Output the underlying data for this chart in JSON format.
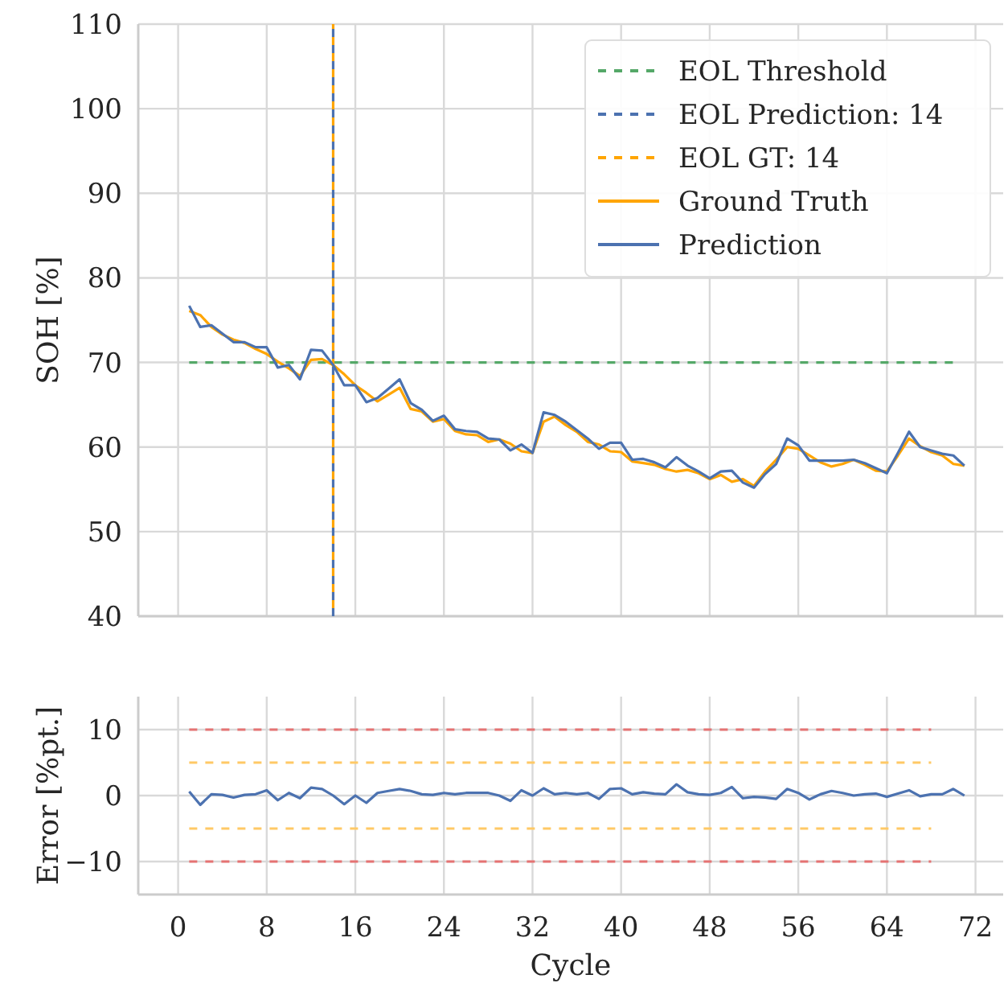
{
  "chart_data": [
    {
      "type": "line",
      "ylabel": "SOH [%]",
      "xlim": [
        -3.6,
        74.5
      ],
      "ylim": [
        40,
        110
      ],
      "xticks": [
        {
          "value": 0,
          "label": null
        },
        {
          "value": 8,
          "label": null
        },
        {
          "value": 16,
          "label": null
        },
        {
          "value": 24,
          "label": null
        },
        {
          "value": 32,
          "label": null
        },
        {
          "value": 40,
          "label": null
        },
        {
          "value": 48,
          "label": null
        },
        {
          "value": 56,
          "label": null
        },
        {
          "value": 64,
          "label": null
        },
        {
          "value": 72,
          "label": null
        }
      ],
      "yticks": [
        40,
        50,
        60,
        70,
        80,
        90,
        100,
        110
      ],
      "grid": true,
      "legend": "top right",
      "tick_labels": "y",
      "series": [
        {
          "name": "EOL Threshold",
          "color": "#55a868",
          "line_style": "dashed",
          "x": [
            1,
            70
          ],
          "values": [
            70,
            70
          ]
        },
        {
          "name": "EOL Prediction: 14",
          "color": "#4c72b0",
          "line_style": "dashed",
          "x": [
            14,
            14
          ],
          "values": [
            40,
            110
          ]
        },
        {
          "name": "EOL GT: 14",
          "color": "#ffa500",
          "line_style": "dashed",
          "x": [
            14,
            14
          ],
          "values": [
            40,
            110
          ]
        },
        {
          "name": "Ground Truth",
          "color": "#ffa500",
          "line_style": "solid",
          "x": [
            1,
            2,
            3,
            4,
            5,
            6,
            7,
            8,
            9,
            10,
            11,
            12,
            13,
            14,
            15,
            16,
            17,
            18,
            19,
            20,
            21,
            22,
            23,
            24,
            25,
            26,
            27,
            28,
            29,
            30,
            31,
            32,
            33,
            34,
            35,
            36,
            37,
            38,
            39,
            40,
            41,
            42,
            43,
            44,
            45,
            46,
            47,
            48,
            49,
            50,
            51,
            52,
            53,
            54,
            55,
            56,
            57,
            58,
            59,
            60,
            61,
            62,
            63,
            64,
            65,
            66,
            67,
            68,
            69,
            70,
            71
          ],
          "values": [
            76.1,
            75.6,
            74.2,
            73.3,
            72.7,
            72.3,
            71.6,
            71.0,
            70.1,
            69.3,
            68.4,
            70.3,
            70.4,
            69.7,
            68.6,
            67.3,
            66.4,
            65.4,
            66.2,
            67.0,
            64.5,
            64.2,
            63.0,
            63.3,
            61.9,
            61.5,
            61.4,
            60.6,
            60.9,
            60.4,
            59.5,
            59.3,
            63.0,
            63.6,
            62.6,
            61.8,
            60.6,
            60.3,
            59.5,
            59.4,
            58.3,
            58.1,
            57.9,
            57.4,
            57.1,
            57.3,
            56.9,
            56.2,
            56.7,
            55.9,
            56.2,
            55.4,
            57.1,
            58.5,
            60.0,
            59.8,
            59.0,
            58.2,
            57.7,
            58.0,
            58.5,
            57.9,
            57.2,
            57.1,
            59.0,
            61.0,
            60.1,
            59.4,
            59.0,
            58.0,
            57.8
          ]
        },
        {
          "name": "Prediction",
          "color": "#4c72b0",
          "line_style": "solid",
          "x": [
            1,
            2,
            3,
            4,
            5,
            6,
            7,
            8,
            9,
            10,
            11,
            12,
            13,
            14,
            15,
            16,
            17,
            18,
            19,
            20,
            21,
            22,
            23,
            24,
            25,
            26,
            27,
            28,
            29,
            30,
            31,
            32,
            33,
            34,
            35,
            36,
            37,
            38,
            39,
            40,
            41,
            42,
            43,
            44,
            45,
            46,
            47,
            48,
            49,
            50,
            51,
            52,
            53,
            54,
            55,
            56,
            57,
            58,
            59,
            60,
            61,
            62,
            63,
            64,
            65,
            66,
            67,
            68,
            69,
            70,
            71
          ],
          "values": [
            76.7,
            74.2,
            74.4,
            73.4,
            72.4,
            72.4,
            71.8,
            71.8,
            69.4,
            69.7,
            68.0,
            71.5,
            71.4,
            69.7,
            67.3,
            67.3,
            65.3,
            65.8,
            66.9,
            68.0,
            65.2,
            64.4,
            63.1,
            63.7,
            62.1,
            61.9,
            61.8,
            61.0,
            60.9,
            59.6,
            60.3,
            59.3,
            64.1,
            63.8,
            63.0,
            62.0,
            61.0,
            59.8,
            60.5,
            60.5,
            58.5,
            58.6,
            58.2,
            57.6,
            58.8,
            57.8,
            57.1,
            56.3,
            57.1,
            57.2,
            55.8,
            55.2,
            56.8,
            58.0,
            61.0,
            60.2,
            58.4,
            58.4,
            58.4,
            58.4,
            58.5,
            58.1,
            57.5,
            56.9,
            59.3,
            61.8,
            60.0,
            59.6,
            59.2,
            59.0,
            57.8
          ]
        }
      ]
    },
    {
      "type": "line",
      "xlabel": "Cycle",
      "ylabel": "Error [%pt.]",
      "xlim": [
        -3.6,
        74.5
      ],
      "ylim": [
        -15,
        15
      ],
      "xticks": [
        0,
        8,
        16,
        24,
        32,
        40,
        48,
        56,
        64,
        72
      ],
      "yticks": [
        {
          "value": -10,
          "label": "−10"
        },
        0,
        10
      ],
      "grid": true,
      "series": [
        {
          "color": "#e57373",
          "line_style": "dashed",
          "x": [
            1,
            68
          ],
          "values": [
            10,
            10
          ]
        },
        {
          "color": "#ffc966",
          "line_style": "dashed",
          "x": [
            1,
            68
          ],
          "values": [
            5,
            5
          ]
        },
        {
          "color": "#ffc966",
          "line_style": "dashed",
          "x": [
            1,
            68
          ],
          "values": [
            -5,
            -5
          ]
        },
        {
          "color": "#e57373",
          "line_style": "dashed",
          "x": [
            1,
            68
          ],
          "values": [
            -10,
            -10
          ]
        },
        {
          "color": "#4c72b0",
          "line_style": "solid",
          "x": [
            1,
            2,
            3,
            4,
            5,
            6,
            7,
            8,
            9,
            10,
            11,
            12,
            13,
            14,
            15,
            16,
            17,
            18,
            19,
            20,
            21,
            22,
            23,
            24,
            25,
            26,
            27,
            28,
            29,
            30,
            31,
            32,
            33,
            34,
            35,
            36,
            37,
            38,
            39,
            40,
            41,
            42,
            43,
            44,
            45,
            46,
            47,
            48,
            49,
            50,
            51,
            52,
            53,
            54,
            55,
            56,
            57,
            58,
            59,
            60,
            61,
            62,
            63,
            64,
            65,
            66,
            67,
            68,
            69,
            70,
            71
          ],
          "values": [
            0.6,
            -1.4,
            0.2,
            0.1,
            -0.3,
            0.1,
            0.2,
            0.8,
            -0.7,
            0.4,
            -0.4,
            1.2,
            1.0,
            0,
            -1.3,
            0,
            -1.1,
            0.4,
            0.7,
            1.0,
            0.7,
            0.2,
            0.1,
            0.4,
            0.2,
            0.4,
            0.4,
            0.4,
            0,
            -0.8,
            0.8,
            0,
            1.1,
            0.2,
            0.4,
            0.2,
            0.4,
            -0.5,
            1.0,
            1.1,
            0.2,
            0.5,
            0.3,
            0.2,
            1.7,
            0.5,
            0.2,
            0.1,
            0.4,
            1.3,
            -0.4,
            -0.2,
            -0.3,
            -0.5,
            1.0,
            0.4,
            -0.6,
            0.2,
            0.7,
            0.4,
            0,
            0.2,
            0.3,
            -0.2,
            0.3,
            0.8,
            -0.1,
            0.2,
            0.2,
            1.0,
            0
          ]
        }
      ]
    }
  ]
}
